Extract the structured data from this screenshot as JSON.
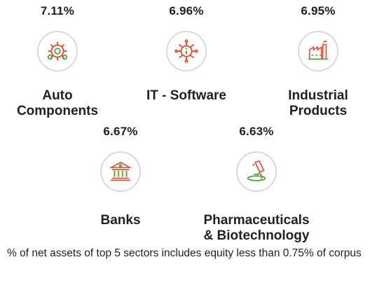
{
  "sectors": [
    {
      "percent": "7.11%",
      "name_line1": "Auto",
      "name_line2": "Components",
      "icon": "gear-icon"
    },
    {
      "percent": "6.96%",
      "name_line1": "IT - Software",
      "name_line2": "",
      "icon": "circuit-info-icon"
    },
    {
      "percent": "6.95%",
      "name_line1": "Industrial",
      "name_line2": "Products",
      "icon": "factory-icon"
    },
    {
      "percent": "6.67%",
      "name_line1": "Banks",
      "name_line2": "",
      "icon": "bank-building-icon"
    },
    {
      "percent": "6.63%",
      "name_line1": "Pharmaceuticals",
      "name_line2": "& Biotechnology",
      "icon": "microscope-icon"
    }
  ],
  "footnote": "% of net assets of top 5 sectors includes equity less than 0.75% of corpus",
  "colors": {
    "accent_red": "#e0533d",
    "accent_green": "#5aa346",
    "ring_gray": "#d9d9d9"
  }
}
